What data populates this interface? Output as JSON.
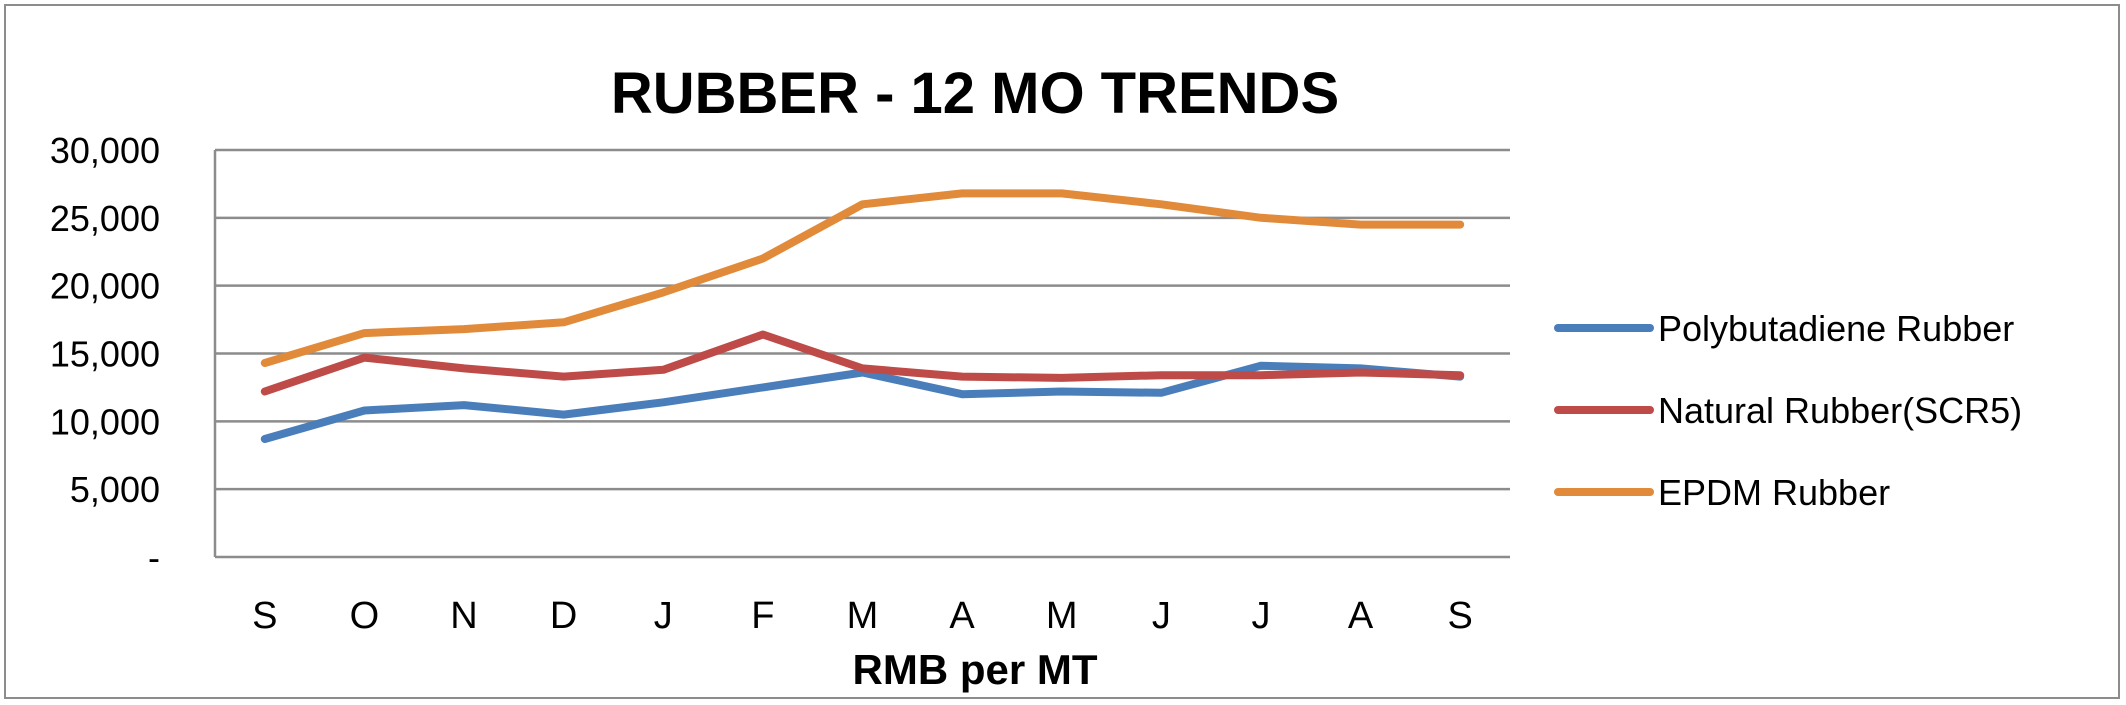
{
  "chart_data": {
    "type": "line",
    "title": "RUBBER - 12 MO TRENDS",
    "xlabel": "RMB per MT",
    "ylabel": "",
    "categories": [
      "S",
      "O",
      "N",
      "D",
      "J",
      "F",
      "M",
      "A",
      "M",
      "J",
      "J",
      "A",
      "S"
    ],
    "ylim": [
      0,
      30000
    ],
    "yticks": [
      0,
      5000,
      10000,
      15000,
      20000,
      25000,
      30000
    ],
    "ytick_labels": [
      "-",
      "5,000",
      "10,000",
      "15,000",
      "20,000",
      "25,000",
      "30,000"
    ],
    "grid": true,
    "legend_position": "right",
    "series": [
      {
        "name": "Polybutadiene Rubber",
        "color": "#4a7ebb",
        "values": [
          8700,
          10800,
          11200,
          10500,
          11400,
          12500,
          13600,
          12000,
          12200,
          12100,
          14100,
          13900,
          13300
        ]
      },
      {
        "name": "Natural Rubber(SCR5)",
        "color": "#be4b48",
        "values": [
          12200,
          14700,
          13900,
          13300,
          13800,
          16400,
          13900,
          13300,
          13200,
          13400,
          13400,
          13600,
          13400
        ]
      },
      {
        "name": "EPDM Rubber",
        "color": "#e08a3a",
        "values": [
          14300,
          16500,
          16800,
          17300,
          19500,
          22000,
          26000,
          26800,
          26800,
          26000,
          25000,
          24500,
          24500
        ]
      }
    ]
  }
}
